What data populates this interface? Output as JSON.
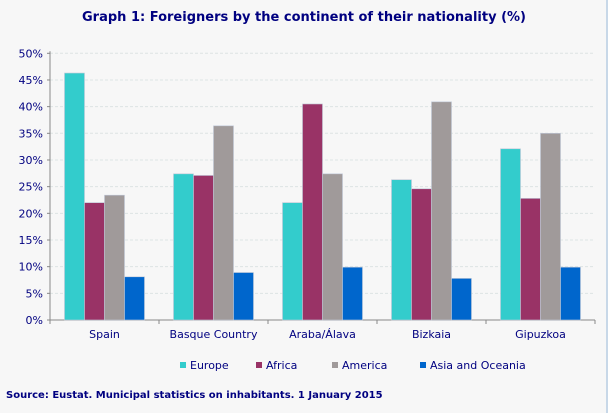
{
  "title": "Graph 1: Foreigners by the continent of their nationality (%)",
  "source": "Source: Eustat. Municipal statistics on inhabitants. 1 January 2015",
  "chart_data": {
    "type": "bar",
    "title": "Graph 1: Foreigners by the continent of their nationality (%)",
    "xlabel": "",
    "ylabel": "",
    "ylim": [
      0,
      50
    ],
    "yticks": [
      "0%",
      "5%",
      "10%",
      "15%",
      "20%",
      "25%",
      "30%",
      "35%",
      "40%",
      "45%",
      "50%"
    ],
    "grid": true,
    "legend_position": "bottom",
    "categories": [
      "Spain",
      "Basque Country",
      "Araba/Álava",
      "Bizkaia",
      "Gipuzkoa"
    ],
    "series": [
      {
        "name": "Europe",
        "color": "#33cccc",
        "values": [
          46.3,
          27.4,
          22.0,
          26.3,
          32.1
        ]
      },
      {
        "name": "Africa",
        "color": "#993366",
        "values": [
          22.0,
          27.1,
          40.5,
          24.6,
          22.8
        ]
      },
      {
        "name": "America",
        "color": "#a09a9a",
        "values": [
          23.4,
          36.4,
          27.4,
          40.9,
          35.0
        ]
      },
      {
        "name": "Asia and Oceania",
        "color": "#0066cc",
        "values": [
          8.1,
          8.9,
          9.9,
          7.8,
          9.9
        ]
      }
    ]
  }
}
